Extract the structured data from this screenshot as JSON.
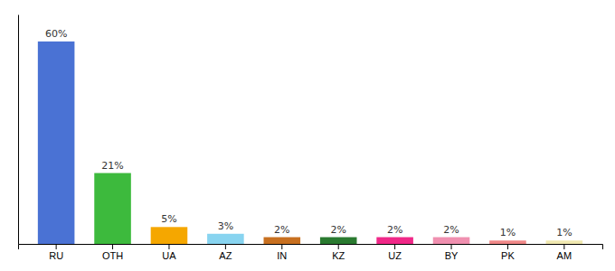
{
  "chart_data": {
    "type": "bar",
    "categories": [
      "RU",
      "OTH",
      "UA",
      "AZ",
      "IN",
      "KZ",
      "UZ",
      "BY",
      "PK",
      "AM"
    ],
    "values": [
      60,
      21,
      5,
      3,
      2,
      2,
      2,
      2,
      1,
      1
    ],
    "value_labels": [
      "60%",
      "21%",
      "5%",
      "3%",
      "2%",
      "2%",
      "2%",
      "2%",
      "1%",
      "1%"
    ],
    "colors": [
      "#4a72d4",
      "#3dba3d",
      "#f5a700",
      "#88d4f0",
      "#c87020",
      "#2a7a30",
      "#f02888",
      "#f090b0",
      "#f08888",
      "#f0e8b0"
    ],
    "ylim": [
      0,
      68
    ],
    "grid": false,
    "tick_labels": "x"
  }
}
